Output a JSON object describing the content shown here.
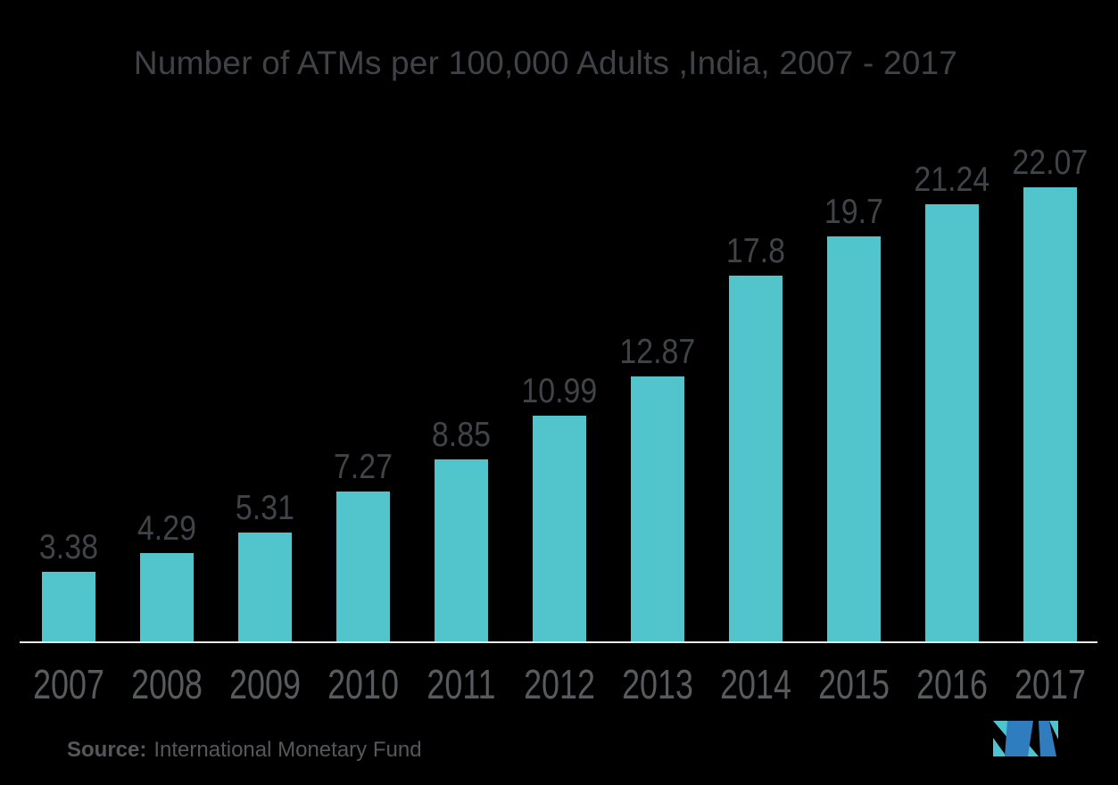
{
  "title": "Number of ATMs per 100,000 Adults ,India, 2007 - 2017",
  "source": {
    "label": "Source:",
    "text": "International Monetary Fund"
  },
  "logo": {
    "name": "mordor-intelligence-logo"
  },
  "colors": {
    "background": "#000000",
    "bar": "#51C4CC",
    "title_text": "#3F4347",
    "value_text": "#3F4448",
    "year_text": "#575B5E",
    "source_text": "#55585B",
    "axis_line": "#E9EAEA",
    "logo_teal": "#4CC5D0",
    "logo_blue": "#2F7CBE"
  },
  "chart_data": {
    "type": "bar",
    "title": "Number of ATMs per 100,000 Adults ,India, 2007 - 2017",
    "categories": [
      "2007",
      "2008",
      "2009",
      "2010",
      "2011",
      "2012",
      "2013",
      "2014",
      "2015",
      "2016",
      "2017"
    ],
    "values": [
      3.38,
      4.29,
      5.31,
      7.27,
      8.85,
      10.99,
      12.87,
      17.8,
      19.7,
      21.24,
      22.07
    ],
    "value_labels": [
      "3.38",
      "4.29",
      "5.31",
      "7.27",
      "8.85",
      "10.99",
      "12.87",
      "17.8",
      "19.7",
      "21.24",
      "22.07"
    ],
    "xlabel": "",
    "ylabel": "",
    "ylim": [
      0,
      24
    ],
    "grid": false,
    "legend": false,
    "orientation": "vertical",
    "data_labels_shown": true,
    "source": "International Monetary Fund"
  }
}
